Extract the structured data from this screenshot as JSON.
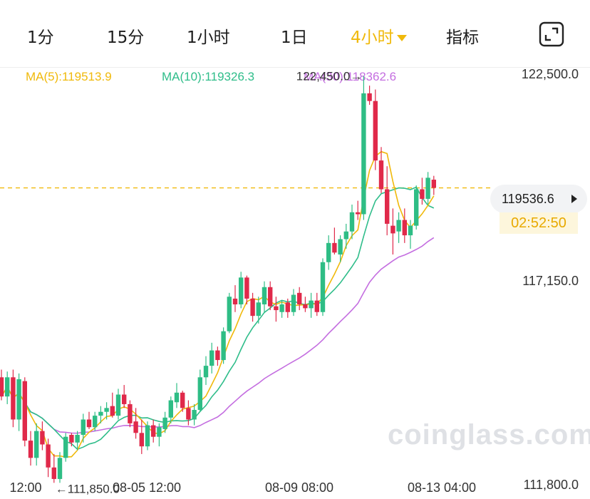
{
  "tabs": {
    "t1": "1分",
    "t15": "15分",
    "t1h": "1小时",
    "t1d": "1日",
    "t4h": "4小时",
    "indicators": "指标"
  },
  "ma": {
    "ma5": "MA(5):119513.9",
    "ma10": "MA(10):119326.3",
    "ma30": "MA(30):118362.6"
  },
  "price": {
    "current": "119536.6",
    "countdown": "02:52:50"
  },
  "watermark": "coinglass.com",
  "colors": {
    "up": "#2ebd85",
    "down": "#e0294a",
    "ma5": "#f0b90b",
    "ma10": "#2fbd8a",
    "ma30": "#c46ee0",
    "accent": "#f0b90b"
  },
  "chart_data": {
    "type": "candlestick",
    "y_ticks": [
      "122,500.0",
      "117,150.0",
      "111,800.0"
    ],
    "x_ticks": [
      "12:00",
      "08-05 12:00",
      "08-09 08:00",
      "08-13 04:00"
    ],
    "annotations": {
      "high": "122,450.0",
      "low": "111,850.0"
    },
    "current_price": 119536.6,
    "ylim": [
      111800,
      122500
    ],
    "candles": [
      [
        114600,
        114800,
        114000,
        114100
      ],
      [
        114100,
        114750,
        113900,
        114600
      ],
      [
        114600,
        114800,
        113300,
        113500
      ],
      [
        113500,
        114700,
        113200,
        114550
      ],
      [
        114500,
        114600,
        112800,
        112950
      ],
      [
        112950,
        113200,
        112300,
        112500
      ],
      [
        112500,
        113400,
        112300,
        113200
      ],
      [
        113200,
        113450,
        112700,
        112850
      ],
      [
        112850,
        113000,
        112000,
        112250
      ],
      [
        112250,
        112600,
        111850,
        111950
      ],
      [
        111950,
        112650,
        111850,
        112500
      ],
      [
        112500,
        113150,
        112400,
        113050
      ],
      [
        113100,
        113150,
        112800,
        112900
      ],
      [
        112900,
        113200,
        112700,
        113100
      ],
      [
        113100,
        113650,
        112900,
        113500
      ],
      [
        113500,
        113700,
        113250,
        113300
      ],
      [
        113300,
        113700,
        113200,
        113600
      ],
      [
        113600,
        113850,
        113400,
        113700
      ],
      [
        113700,
        113950,
        113500,
        113800
      ],
      [
        113850,
        114200,
        113550,
        113600
      ],
      [
        113600,
        114300,
        113500,
        114150
      ],
      [
        114150,
        114400,
        113800,
        113900
      ],
      [
        113900,
        114000,
        113300,
        113400
      ],
      [
        113450,
        113800,
        113000,
        113150
      ],
      [
        113150,
        113500,
        112600,
        112800
      ],
      [
        112800,
        113450,
        112700,
        113350
      ],
      [
        113350,
        113500,
        112900,
        113050
      ],
      [
        113050,
        113400,
        112800,
        113300
      ],
      [
        113250,
        113700,
        113150,
        113550
      ],
      [
        113550,
        114100,
        113400,
        114000
      ],
      [
        113950,
        114450,
        113800,
        114200
      ],
      [
        114200,
        114250,
        113700,
        113800
      ],
      [
        113800,
        114000,
        113350,
        113500
      ],
      [
        113500,
        113900,
        113350,
        113750
      ],
      [
        113750,
        114800,
        113700,
        114600
      ],
      [
        114600,
        115150,
        114400,
        114900
      ],
      [
        114900,
        115500,
        114700,
        115300
      ],
      [
        115300,
        115400,
        114900,
        115050
      ],
      [
        115050,
        115900,
        114950,
        115800
      ],
      [
        115800,
        116800,
        115750,
        116700
      ],
      [
        116650,
        117000,
        116300,
        116500
      ],
      [
        116500,
        117350,
        116400,
        117200
      ],
      [
        117200,
        117250,
        116500,
        116650
      ],
      [
        116650,
        116800,
        116050,
        116200
      ],
      [
        116200,
        116700,
        116000,
        116550
      ],
      [
        116500,
        117100,
        116300,
        116950
      ],
      [
        116950,
        117100,
        116350,
        116450
      ],
      [
        116450,
        116700,
        116050,
        116350
      ],
      [
        116300,
        116600,
        116150,
        116500
      ],
      [
        116550,
        116650,
        116150,
        116300
      ],
      [
        116300,
        116900,
        116200,
        116750
      ],
      [
        116800,
        116950,
        116350,
        116500
      ],
      [
        116500,
        116700,
        116300,
        116400
      ],
      [
        116400,
        116800,
        116150,
        116600
      ],
      [
        116600,
        116800,
        116200,
        116300
      ],
      [
        116300,
        117700,
        116200,
        117600
      ],
      [
        117600,
        118300,
        117400,
        118100
      ],
      [
        118100,
        118500,
        117800,
        117850
      ],
      [
        117800,
        118300,
        117600,
        118200
      ],
      [
        118200,
        118600,
        117950,
        118400
      ],
      [
        118400,
        119100,
        118200,
        118900
      ],
      [
        118900,
        119200,
        118700,
        118850
      ],
      [
        118850,
        122450,
        118700,
        122000
      ],
      [
        122000,
        122200,
        121700,
        121800
      ],
      [
        121800,
        122100,
        120000,
        120250
      ],
      [
        120250,
        120600,
        119400,
        119500
      ],
      [
        119500,
        120100,
        118300,
        118600
      ],
      [
        118550,
        119000,
        117800,
        118350
      ],
      [
        118400,
        118900,
        118100,
        118700
      ],
      [
        118700,
        119000,
        118100,
        118300
      ],
      [
        118300,
        118700,
        117950,
        118550
      ],
      [
        118550,
        119600,
        118450,
        119500
      ],
      [
        119500,
        119800,
        119100,
        119250
      ],
      [
        119250,
        119950,
        119100,
        119800
      ],
      [
        119750,
        119850,
        119350,
        119536.6
      ]
    ]
  }
}
